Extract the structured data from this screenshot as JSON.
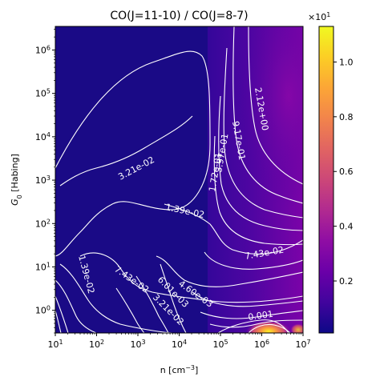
{
  "chart_data": {
    "type": "heatmap",
    "title": "CO(J=11-10) / CO(J=8-7)",
    "xlabel_prefix": "n [cm",
    "xlabel_sup": "−3",
    "xlabel_suffix": "]",
    "ylabel_g": "G",
    "ylabel_sub": "0",
    "ylabel_suffix": " [Habing]",
    "x_scale": "log",
    "y_scale": "log",
    "xlim": [
      10,
      10000000
    ],
    "ylim": [
      0.3,
      3500000
    ],
    "x_ticks": [
      {
        "value": 10,
        "base": "10",
        "exp": "1"
      },
      {
        "value": 100,
        "base": "10",
        "exp": "2"
      },
      {
        "value": 1000,
        "base": "10",
        "exp": "3"
      },
      {
        "value": 10000,
        "base": "10",
        "exp": "4"
      },
      {
        "value": 100000,
        "base": "10",
        "exp": "5"
      },
      {
        "value": 1000000,
        "base": "10",
        "exp": "6"
      },
      {
        "value": 10000000,
        "base": "10",
        "exp": "7"
      }
    ],
    "y_ticks": [
      {
        "value": 1,
        "base": "10",
        "exp": "0"
      },
      {
        "value": 10,
        "base": "10",
        "exp": "1"
      },
      {
        "value": 100,
        "base": "10",
        "exp": "2"
      },
      {
        "value": 1000,
        "base": "10",
        "exp": "3"
      },
      {
        "value": 10000,
        "base": "10",
        "exp": "4"
      },
      {
        "value": 100000,
        "base": "10",
        "exp": "5"
      },
      {
        "value": 1000000,
        "base": "10",
        "exp": "6"
      }
    ],
    "colormap": "plasma",
    "colorbar": {
      "multiplier_base": "×10",
      "multiplier_exp": "1",
      "range": [
        0.01,
        1.13
      ],
      "ticks": [
        {
          "value": 0.2,
          "label": "0.2"
        },
        {
          "value": 0.4,
          "label": "0.4"
        },
        {
          "value": 0.6,
          "label": "0.6"
        },
        {
          "value": 0.8,
          "label": "0.8"
        },
        {
          "value": 1.0,
          "label": "1.0"
        }
      ]
    },
    "contour_levels": [
      "1.39e-02",
      "1.72e-01",
      "2.12e+00",
      "3.21e-02",
      "3.21e-02",
      "3.97e-01",
      "4.60e-03",
      "6.01e-03",
      "7.43e-02",
      "7.43e-02",
      "9.17e-01",
      "1.39e-02",
      "0.001"
    ]
  }
}
